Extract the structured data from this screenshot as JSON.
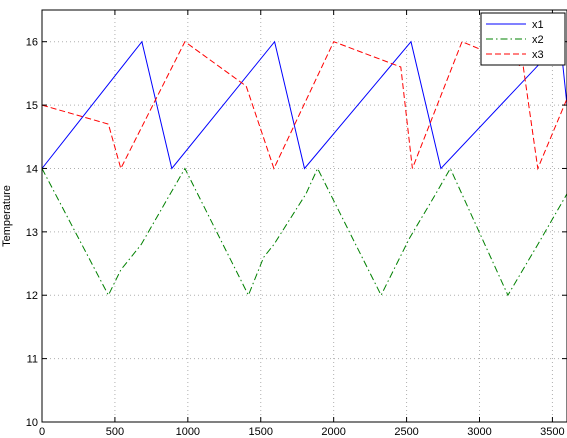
{
  "chart_data": {
    "type": "line",
    "title": "",
    "xlabel": "",
    "ylabel": "Temperature",
    "xlim": [
      0,
      3600
    ],
    "ylim": [
      10,
      16.5
    ],
    "xticks": [
      0,
      500,
      1000,
      1500,
      2000,
      2500,
      3000,
      3500
    ],
    "yticks": [
      10,
      11,
      12,
      13,
      14,
      15,
      16
    ],
    "grid": true,
    "legend_position": "top-right",
    "series": [
      {
        "name": "x1",
        "color": "#0000ff",
        "dash": "solid",
        "x": [
          0,
          685,
          890,
          1595,
          1800,
          2530,
          2735,
          3555,
          3600
        ],
        "y": [
          14.0,
          16.0,
          14.0,
          16.0,
          14.0,
          16.0,
          14.0,
          16.0,
          15.0
        ]
      },
      {
        "name": "x2",
        "color": "#008000",
        "dash": "dashdot",
        "x": [
          0,
          455,
          540,
          680,
          880,
          980,
          1415,
          1520,
          1590,
          1810,
          1890,
          2325,
          2520,
          2700,
          2800,
          3195,
          3400,
          3600
        ],
        "y": [
          14.0,
          12.0,
          12.4,
          12.8,
          13.6,
          14.0,
          12.0,
          12.6,
          12.8,
          13.6,
          14.0,
          12.0,
          12.9,
          13.6,
          14.0,
          12.0,
          12.8,
          13.6
        ]
      },
      {
        "name": "x3",
        "color": "#ff0000",
        "dash": "dashed",
        "x": [
          0,
          455,
          540,
          980,
          1400,
          1590,
          2000,
          2460,
          2540,
          2880,
          3300,
          3400,
          3600
        ],
        "y": [
          15.0,
          14.7,
          14.0,
          16.0,
          15.3,
          14.0,
          16.0,
          15.6,
          14.0,
          16.0,
          15.6,
          14.0,
          15.1
        ]
      }
    ]
  }
}
